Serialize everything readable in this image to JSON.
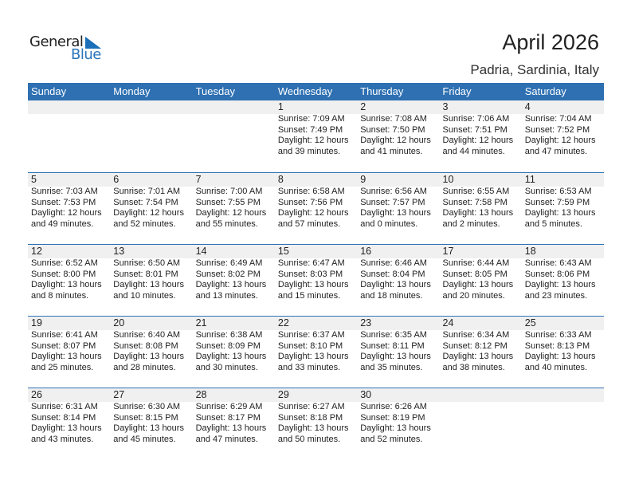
{
  "logo": {
    "general": "General",
    "blue": "Blue"
  },
  "title": "April 2026",
  "location": "Padria, Sardinia, Italy",
  "colors": {
    "header": "#2e70b2",
    "band": "#f0f0f0"
  },
  "weekdays": [
    "Sunday",
    "Monday",
    "Tuesday",
    "Wednesday",
    "Thursday",
    "Friday",
    "Saturday"
  ],
  "weeks": [
    [
      null,
      null,
      null,
      {
        "day": "1",
        "sunrise": "Sunrise: 7:09 AM",
        "sunset": "Sunset: 7:49 PM",
        "daylight1": "Daylight: 12 hours",
        "daylight2": "and 39 minutes."
      },
      {
        "day": "2",
        "sunrise": "Sunrise: 7:08 AM",
        "sunset": "Sunset: 7:50 PM",
        "daylight1": "Daylight: 12 hours",
        "daylight2": "and 41 minutes."
      },
      {
        "day": "3",
        "sunrise": "Sunrise: 7:06 AM",
        "sunset": "Sunset: 7:51 PM",
        "daylight1": "Daylight: 12 hours",
        "daylight2": "and 44 minutes."
      },
      {
        "day": "4",
        "sunrise": "Sunrise: 7:04 AM",
        "sunset": "Sunset: 7:52 PM",
        "daylight1": "Daylight: 12 hours",
        "daylight2": "and 47 minutes."
      }
    ],
    [
      {
        "day": "5",
        "sunrise": "Sunrise: 7:03 AM",
        "sunset": "Sunset: 7:53 PM",
        "daylight1": "Daylight: 12 hours",
        "daylight2": "and 49 minutes."
      },
      {
        "day": "6",
        "sunrise": "Sunrise: 7:01 AM",
        "sunset": "Sunset: 7:54 PM",
        "daylight1": "Daylight: 12 hours",
        "daylight2": "and 52 minutes."
      },
      {
        "day": "7",
        "sunrise": "Sunrise: 7:00 AM",
        "sunset": "Sunset: 7:55 PM",
        "daylight1": "Daylight: 12 hours",
        "daylight2": "and 55 minutes."
      },
      {
        "day": "8",
        "sunrise": "Sunrise: 6:58 AM",
        "sunset": "Sunset: 7:56 PM",
        "daylight1": "Daylight: 12 hours",
        "daylight2": "and 57 minutes."
      },
      {
        "day": "9",
        "sunrise": "Sunrise: 6:56 AM",
        "sunset": "Sunset: 7:57 PM",
        "daylight1": "Daylight: 13 hours",
        "daylight2": "and 0 minutes."
      },
      {
        "day": "10",
        "sunrise": "Sunrise: 6:55 AM",
        "sunset": "Sunset: 7:58 PM",
        "daylight1": "Daylight: 13 hours",
        "daylight2": "and 2 minutes."
      },
      {
        "day": "11",
        "sunrise": "Sunrise: 6:53 AM",
        "sunset": "Sunset: 7:59 PM",
        "daylight1": "Daylight: 13 hours",
        "daylight2": "and 5 minutes."
      }
    ],
    [
      {
        "day": "12",
        "sunrise": "Sunrise: 6:52 AM",
        "sunset": "Sunset: 8:00 PM",
        "daylight1": "Daylight: 13 hours",
        "daylight2": "and 8 minutes."
      },
      {
        "day": "13",
        "sunrise": "Sunrise: 6:50 AM",
        "sunset": "Sunset: 8:01 PM",
        "daylight1": "Daylight: 13 hours",
        "daylight2": "and 10 minutes."
      },
      {
        "day": "14",
        "sunrise": "Sunrise: 6:49 AM",
        "sunset": "Sunset: 8:02 PM",
        "daylight1": "Daylight: 13 hours",
        "daylight2": "and 13 minutes."
      },
      {
        "day": "15",
        "sunrise": "Sunrise: 6:47 AM",
        "sunset": "Sunset: 8:03 PM",
        "daylight1": "Daylight: 13 hours",
        "daylight2": "and 15 minutes."
      },
      {
        "day": "16",
        "sunrise": "Sunrise: 6:46 AM",
        "sunset": "Sunset: 8:04 PM",
        "daylight1": "Daylight: 13 hours",
        "daylight2": "and 18 minutes."
      },
      {
        "day": "17",
        "sunrise": "Sunrise: 6:44 AM",
        "sunset": "Sunset: 8:05 PM",
        "daylight1": "Daylight: 13 hours",
        "daylight2": "and 20 minutes."
      },
      {
        "day": "18",
        "sunrise": "Sunrise: 6:43 AM",
        "sunset": "Sunset: 8:06 PM",
        "daylight1": "Daylight: 13 hours",
        "daylight2": "and 23 minutes."
      }
    ],
    [
      {
        "day": "19",
        "sunrise": "Sunrise: 6:41 AM",
        "sunset": "Sunset: 8:07 PM",
        "daylight1": "Daylight: 13 hours",
        "daylight2": "and 25 minutes."
      },
      {
        "day": "20",
        "sunrise": "Sunrise: 6:40 AM",
        "sunset": "Sunset: 8:08 PM",
        "daylight1": "Daylight: 13 hours",
        "daylight2": "and 28 minutes."
      },
      {
        "day": "21",
        "sunrise": "Sunrise: 6:38 AM",
        "sunset": "Sunset: 8:09 PM",
        "daylight1": "Daylight: 13 hours",
        "daylight2": "and 30 minutes."
      },
      {
        "day": "22",
        "sunrise": "Sunrise: 6:37 AM",
        "sunset": "Sunset: 8:10 PM",
        "daylight1": "Daylight: 13 hours",
        "daylight2": "and 33 minutes."
      },
      {
        "day": "23",
        "sunrise": "Sunrise: 6:35 AM",
        "sunset": "Sunset: 8:11 PM",
        "daylight1": "Daylight: 13 hours",
        "daylight2": "and 35 minutes."
      },
      {
        "day": "24",
        "sunrise": "Sunrise: 6:34 AM",
        "sunset": "Sunset: 8:12 PM",
        "daylight1": "Daylight: 13 hours",
        "daylight2": "and 38 minutes."
      },
      {
        "day": "25",
        "sunrise": "Sunrise: 6:33 AM",
        "sunset": "Sunset: 8:13 PM",
        "daylight1": "Daylight: 13 hours",
        "daylight2": "and 40 minutes."
      }
    ],
    [
      {
        "day": "26",
        "sunrise": "Sunrise: 6:31 AM",
        "sunset": "Sunset: 8:14 PM",
        "daylight1": "Daylight: 13 hours",
        "daylight2": "and 43 minutes."
      },
      {
        "day": "27",
        "sunrise": "Sunrise: 6:30 AM",
        "sunset": "Sunset: 8:15 PM",
        "daylight1": "Daylight: 13 hours",
        "daylight2": "and 45 minutes."
      },
      {
        "day": "28",
        "sunrise": "Sunrise: 6:29 AM",
        "sunset": "Sunset: 8:17 PM",
        "daylight1": "Daylight: 13 hours",
        "daylight2": "and 47 minutes."
      },
      {
        "day": "29",
        "sunrise": "Sunrise: 6:27 AM",
        "sunset": "Sunset: 8:18 PM",
        "daylight1": "Daylight: 13 hours",
        "daylight2": "and 50 minutes."
      },
      {
        "day": "30",
        "sunrise": "Sunrise: 6:26 AM",
        "sunset": "Sunset: 8:19 PM",
        "daylight1": "Daylight: 13 hours",
        "daylight2": "and 52 minutes."
      },
      null,
      null
    ]
  ]
}
